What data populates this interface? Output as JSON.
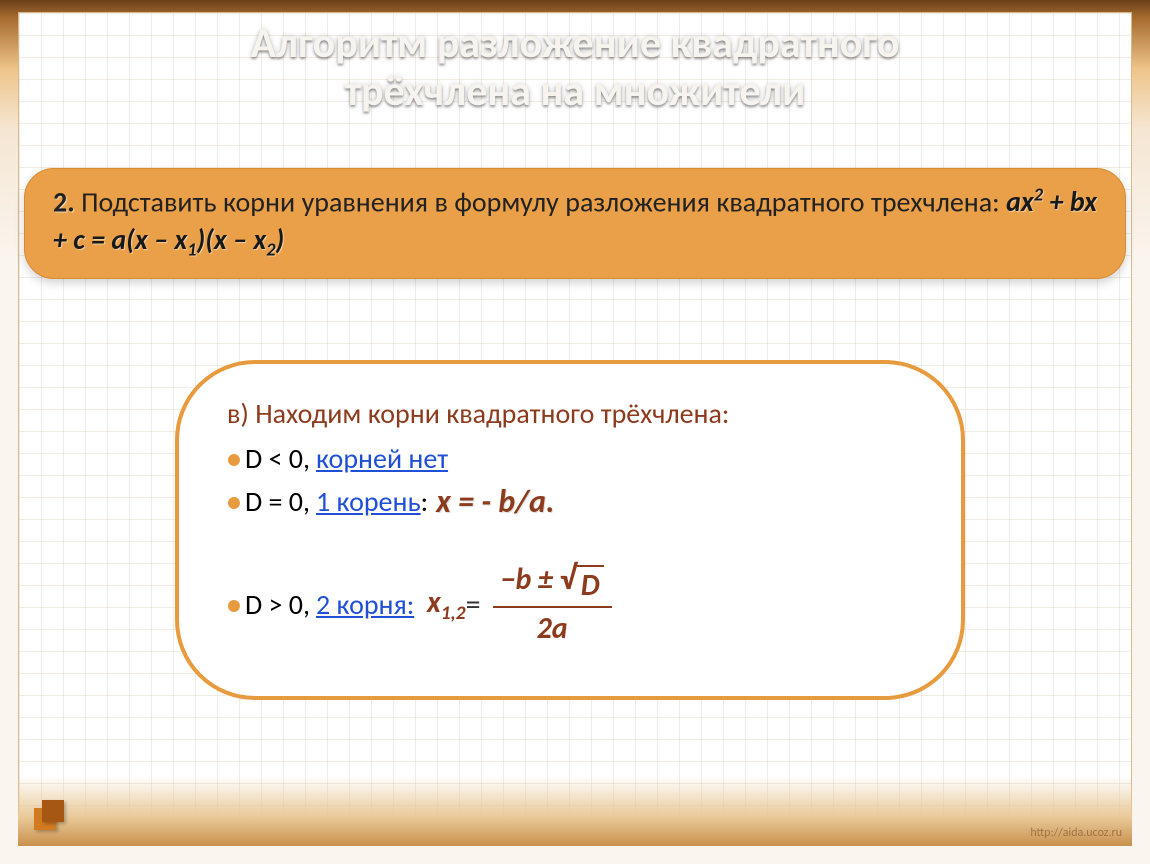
{
  "title_line1": "Алгоритм разложение квадратного",
  "title_line2": "трёхчлена на множители",
  "step": {
    "num": "2.",
    "text_a": " Подставить корни уравнения в формулу разложения квадратного трехчлена:  ",
    "formula_html": "ax<span class='sup'>2</span> + bx + c = a(x – x<span class='sub'>1</span>)(x – x<span class='sub'>2</span>)"
  },
  "box": {
    "head": "в) Находим корни квадратного трёхчлена:",
    "b1_lead": "D < 0, ",
    "b1_link": "корней нет",
    "b2_lead": "D = 0, ",
    "b2_link": "1 корень ",
    "b2_colon": ": ",
    "b2_eq": "x = - b/a.",
    "b3_lead": "D > 0, ",
    "b3_link": "2 корня:",
    "x12": "x",
    "x12_sub": "1,2",
    "eq": " = ",
    "num_prefix": "−b ± ",
    "sqrt_arg": "D",
    "den": "2a"
  },
  "credit": "http://aida.ucoz.ru",
  "colors": {
    "accent": "#e79b3e",
    "maroon": "#8c3b1d",
    "link": "#1f4fd6",
    "pill_bg": "#e9a048"
  }
}
